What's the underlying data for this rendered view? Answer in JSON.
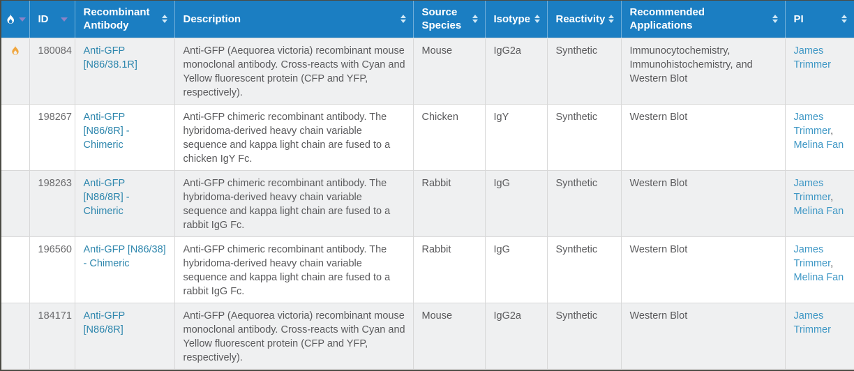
{
  "table": {
    "columns": [
      {
        "key": "hot",
        "label": "",
        "icon": "flame-icon",
        "sort_icon": "caret-down-icon"
      },
      {
        "key": "id",
        "label": "ID",
        "sort_icon": "caret-down-icon"
      },
      {
        "key": "antibody",
        "label": "Recombinant Antibody",
        "sort_icon": "sort-both-icon"
      },
      {
        "key": "description",
        "label": "Description",
        "sort_icon": "sort-both-icon"
      },
      {
        "key": "source",
        "label": "Source Species",
        "sort_icon": "sort-both-icon"
      },
      {
        "key": "isotype",
        "label": "Isotype",
        "sort_icon": "sort-both-icon"
      },
      {
        "key": "reactivity",
        "label": "Reactivity",
        "sort_icon": "sort-both-icon"
      },
      {
        "key": "applications",
        "label": "Recommended Applications",
        "sort_icon": "sort-both-icon"
      },
      {
        "key": "pi",
        "label": "PI",
        "sort_icon": "sort-both-icon"
      }
    ],
    "rows": [
      {
        "hot": true,
        "id": "180084",
        "antibody": "Anti-GFP [N86/38.1R]",
        "description": "Anti-GFP (Aequorea victoria) recombinant mouse monoclonal antibody. Cross-reacts with Cyan and Yellow fluorescent protein (CFP and YFP, respectively).",
        "source": "Mouse",
        "isotype": "IgG2a",
        "reactivity": "Synthetic",
        "applications": "Immunocytochemistry, Immunohistochemistry, and Western Blot",
        "pi": [
          "James Trimmer"
        ]
      },
      {
        "hot": false,
        "id": "198267",
        "antibody": "Anti-GFP [N86/8R] - Chimeric",
        "description": "Anti-GFP chimeric recombinant antibody. The hybridoma-derived heavy chain variable sequence and kappa light chain are fused to a chicken IgY Fc.",
        "source": "Chicken",
        "isotype": "IgY",
        "reactivity": "Synthetic",
        "applications": "Western Blot",
        "pi": [
          "James Trimmer",
          "Melina Fan"
        ]
      },
      {
        "hot": false,
        "id": "198263",
        "antibody": "Anti-GFP [N86/8R] - Chimeric",
        "description": "Anti-GFP chimeric recombinant antibody. The hybridoma-derived heavy chain variable sequence and kappa light chain are fused to a rabbit IgG Fc.",
        "source": "Rabbit",
        "isotype": "IgG",
        "reactivity": "Synthetic",
        "applications": "Western Blot",
        "pi": [
          "James Trimmer",
          "Melina Fan"
        ]
      },
      {
        "hot": false,
        "id": "196560",
        "antibody": "Anti-GFP [N86/38] - Chimeric",
        "description": "Anti-GFP chimeric recombinant antibody. The hybridoma-derived heavy chain variable sequence and kappa light chain are fused to a rabbit IgG Fc.",
        "source": "Rabbit",
        "isotype": "IgG",
        "reactivity": "Synthetic",
        "applications": "Western Blot",
        "pi": [
          "James Trimmer",
          "Melina Fan"
        ]
      },
      {
        "hot": false,
        "id": "184171",
        "antibody": "Anti-GFP [N86/8R]",
        "description": "Anti-GFP (Aequorea victoria) recombinant mouse monoclonal antibody. Cross-reacts with Cyan and Yellow fluorescent protein (CFP and YFP, respectively).",
        "source": "Mouse",
        "isotype": "IgG2a",
        "reactivity": "Synthetic",
        "applications": "Western Blot",
        "pi": [
          "James Trimmer"
        ]
      }
    ]
  },
  "colors": {
    "header_bg": "#1b7ec2",
    "row_alt_bg": "#eff0f1",
    "row_bg": "#ffffff",
    "antibody_link": "#2d86ad",
    "pi_link": "#3e97c5",
    "flame_orange": "#f0a63e",
    "caret_purple": "#8d83c7",
    "text_color": "#5a5a5c"
  }
}
